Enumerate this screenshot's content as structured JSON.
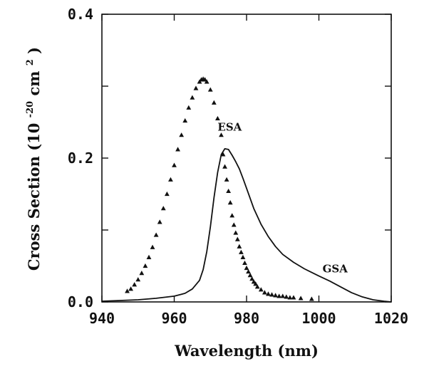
{
  "chart_data": {
    "type": "scatter",
    "title": "",
    "xlabel": "Wavelength (nm)",
    "ylabel": "Cross Section (10",
    "ylabel_exp": "-20",
    "ylabel_unit": " cm",
    "ylabel_unit_exp": "2",
    "ylabel_close": " )",
    "xlim": [
      940,
      1020
    ],
    "ylim": [
      0,
      0.4
    ],
    "x_ticks": [
      940,
      960,
      980,
      1000,
      1020
    ],
    "x_tick_labels": [
      "940",
      "960",
      "980",
      "1000",
      "1020"
    ],
    "y_ticks": [
      0,
      0.2,
      0.4
    ],
    "y_tick_labels": [
      "0.0",
      "0.2",
      "0.4"
    ],
    "grid": false,
    "series": [
      {
        "name": "ESA",
        "style": "triangle-markers",
        "x": [
          947,
          948,
          949,
          950,
          951,
          952,
          953,
          954,
          955,
          956,
          957,
          958,
          959,
          960,
          961,
          962,
          963,
          964,
          965,
          966,
          967,
          967.5,
          968,
          968.5,
          969,
          970,
          971,
          972,
          973,
          973.5,
          974,
          974.5,
          975,
          975.5,
          976,
          976.5,
          977,
          977.5,
          978,
          978.5,
          979,
          979.5,
          980,
          980.5,
          981,
          981.5,
          982,
          982.5,
          983,
          984,
          985,
          986,
          987,
          988,
          989,
          990,
          991,
          992,
          993,
          995,
          998
        ],
        "y": [
          0.015,
          0.018,
          0.024,
          0.031,
          0.04,
          0.05,
          0.062,
          0.076,
          0.093,
          0.111,
          0.13,
          0.15,
          0.17,
          0.19,
          0.212,
          0.232,
          0.252,
          0.27,
          0.284,
          0.297,
          0.306,
          0.309,
          0.31,
          0.309,
          0.306,
          0.295,
          0.277,
          0.255,
          0.232,
          0.205,
          0.188,
          0.17,
          0.154,
          0.138,
          0.12,
          0.107,
          0.096,
          0.087,
          0.077,
          0.069,
          0.062,
          0.054,
          0.047,
          0.042,
          0.037,
          0.032,
          0.028,
          0.025,
          0.021,
          0.017,
          0.013,
          0.011,
          0.01,
          0.009,
          0.008,
          0.008,
          0.007,
          0.006,
          0.006,
          0.005,
          0.004
        ]
      },
      {
        "name": "GSA",
        "style": "solid-line",
        "x": [
          940,
          945,
          950,
          955,
          960,
          963,
          965,
          967,
          968,
          969,
          970,
          971,
          972,
          973,
          974,
          975,
          976,
          977,
          978,
          979,
          980,
          982,
          984,
          986,
          988,
          990,
          993,
          996,
          1000,
          1003,
          1006,
          1009,
          1012,
          1015,
          1018,
          1020
        ],
        "y": [
          0.001,
          0.002,
          0.003,
          0.005,
          0.008,
          0.012,
          0.018,
          0.03,
          0.045,
          0.07,
          0.105,
          0.145,
          0.18,
          0.205,
          0.213,
          0.212,
          0.204,
          0.195,
          0.185,
          0.172,
          0.158,
          0.13,
          0.108,
          0.091,
          0.077,
          0.066,
          0.055,
          0.046,
          0.036,
          0.029,
          0.021,
          0.013,
          0.007,
          0.003,
          0.001,
          0.0
        ]
      }
    ],
    "annotations": [
      {
        "text": "ESA",
        "x": 972,
        "y": 0.238
      },
      {
        "text": "GSA",
        "x": 1001,
        "y": 0.041
      }
    ]
  }
}
